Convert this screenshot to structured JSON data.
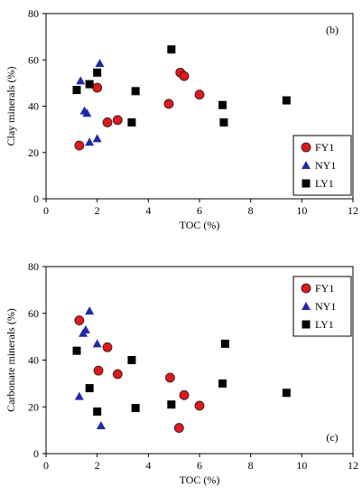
{
  "colors": {
    "FY1": "#e0191f",
    "NY1": "#1f2aa6",
    "LY1": "#000000",
    "marker_stroke": "#1a1a1a"
  },
  "chart_data": [
    {
      "type": "scatter",
      "panel_label": "(b)",
      "xlabel": "TOC (%)",
      "ylabel": "Clay minerals (%)",
      "xlim": [
        0,
        12
      ],
      "ylim": [
        0,
        80
      ],
      "xticks": [
        0,
        2,
        4,
        6,
        8,
        10,
        12
      ],
      "yticks": [
        0,
        20,
        40,
        60,
        80
      ],
      "legend_position": "bottom-right",
      "series": [
        {
          "name": "FY1",
          "marker": "circle",
          "x": [
            1.3,
            2.0,
            2.4,
            2.8,
            4.8,
            5.25,
            5.4,
            6.0
          ],
          "y": [
            23,
            48,
            33,
            34,
            41,
            54.5,
            53,
            45
          ]
        },
        {
          "name": "NY1",
          "marker": "triangle",
          "x": [
            1.35,
            1.5,
            1.6,
            1.7,
            2.0,
            2.1
          ],
          "y": [
            51,
            38,
            37,
            24.5,
            26,
            58.5
          ]
        },
        {
          "name": "LY1",
          "marker": "square",
          "x": [
            1.2,
            1.7,
            2.0,
            3.35,
            3.5,
            4.9,
            6.9,
            6.95,
            9.4
          ],
          "y": [
            47,
            49.5,
            54.5,
            33,
            46.5,
            64.5,
            40.5,
            33,
            42.5
          ]
        }
      ]
    },
    {
      "type": "scatter",
      "panel_label": "(c)",
      "xlabel": "TOC (%)",
      "ylabel": "Carbonate minerals (%)",
      "xlim": [
        0,
        12
      ],
      "ylim": [
        0,
        80
      ],
      "xticks": [
        0,
        2,
        4,
        6,
        8,
        10,
        12
      ],
      "yticks": [
        0,
        20,
        40,
        60,
        80
      ],
      "legend_position": "top-right",
      "series": [
        {
          "name": "FY1",
          "marker": "circle",
          "x": [
            1.3,
            2.05,
            2.4,
            2.8,
            4.85,
            5.2,
            5.4,
            6.0
          ],
          "y": [
            57,
            35.5,
            45.5,
            34,
            32.5,
            11,
            25,
            20.5
          ]
        },
        {
          "name": "NY1",
          "marker": "triangle",
          "x": [
            1.3,
            1.45,
            1.55,
            1.7,
            2.0,
            2.15
          ],
          "y": [
            24.5,
            51.5,
            53,
            61,
            47,
            12
          ]
        },
        {
          "name": "LY1",
          "marker": "square",
          "x": [
            1.2,
            1.7,
            2.0,
            3.35,
            3.5,
            4.9,
            6.9,
            7.0,
            9.4
          ],
          "y": [
            44,
            28,
            18,
            40,
            19.5,
            21,
            30,
            47,
            26
          ]
        }
      ]
    }
  ]
}
